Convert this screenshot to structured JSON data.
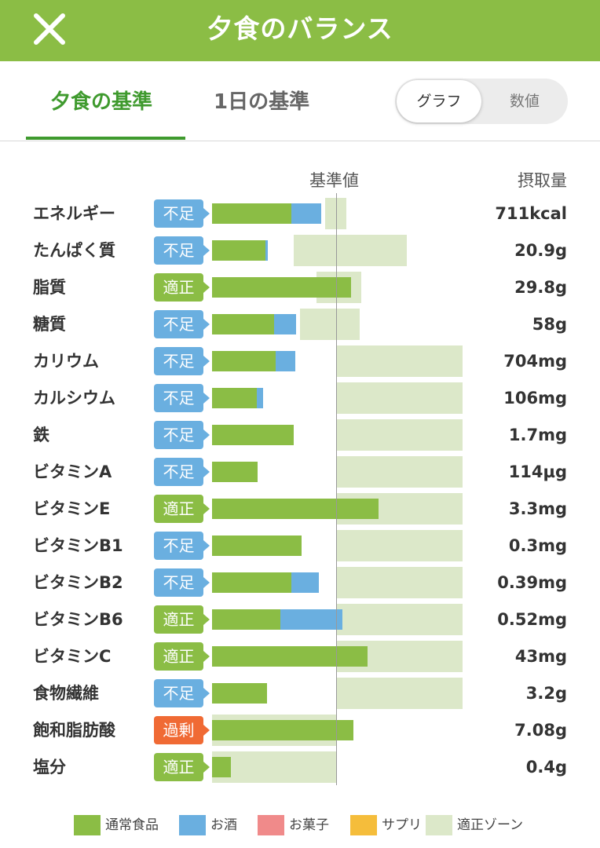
{
  "header": {
    "title": "夕食のバランス"
  },
  "tabs": [
    {
      "label": "夕食の基準"
    },
    {
      "label": "1日の基準"
    }
  ],
  "view_toggle": {
    "options": [
      "グラフ",
      "数値"
    ],
    "selected": "グラフ"
  },
  "columns": {
    "reference": "基準値",
    "intake": "摂取量"
  },
  "colors": {
    "regular_food": "#8bbd45",
    "alcohol": "#6aafe0",
    "sweets": "#f08a8a",
    "supplement": "#f5bd3b",
    "proper_zone": "#dce8c9",
    "status_short": "#6aafe0",
    "status_ok": "#8bbd45",
    "status_over": "#f06a34"
  },
  "chart_data": {
    "type": "bar",
    "reference_percent": 100,
    "value_unit": "percent_of_reference",
    "series": [
      {
        "name": "通常食品",
        "color": "#8bbd45"
      },
      {
        "name": "お酒",
        "color": "#6aafe0"
      }
    ],
    "rows": [
      {
        "name": "エネルギー",
        "status": "不足",
        "status_kind": "short",
        "intake": "711kcal",
        "regular": 64,
        "alcohol": 24,
        "zone": [
          91,
          108
        ]
      },
      {
        "name": "たんぱく質",
        "status": "不足",
        "status_kind": "short",
        "intake": "20.9g",
        "regular": 43,
        "alcohol": 2,
        "zone": [
          66,
          157
        ]
      },
      {
        "name": "脂質",
        "status": "適正",
        "status_kind": "ok",
        "intake": "29.8g",
        "regular": 112,
        "alcohol": 0,
        "zone": [
          84,
          120
        ]
      },
      {
        "name": "糖質",
        "status": "不足",
        "status_kind": "short",
        "intake": "58g",
        "regular": 50,
        "alcohol": 18,
        "zone": [
          71,
          119
        ]
      },
      {
        "name": "カリウム",
        "status": "不足",
        "status_kind": "short",
        "intake": "704mg",
        "regular": 51,
        "alcohol": 16,
        "zone": [
          100,
          202
        ]
      },
      {
        "name": "カルシウム",
        "status": "不足",
        "status_kind": "short",
        "intake": "106mg",
        "regular": 36,
        "alcohol": 5,
        "zone": [
          100,
          202
        ]
      },
      {
        "name": "鉄",
        "status": "不足",
        "status_kind": "short",
        "intake": "1.7mg",
        "regular": 66,
        "alcohol": 0,
        "zone": [
          100,
          202
        ]
      },
      {
        "name": "ビタミンA",
        "status": "不足",
        "status_kind": "short",
        "intake": "114µg",
        "regular": 37,
        "alcohol": 0,
        "zone": [
          100,
          202
        ]
      },
      {
        "name": "ビタミンE",
        "status": "適正",
        "status_kind": "ok",
        "intake": "3.3mg",
        "regular": 134,
        "alcohol": 0,
        "zone": [
          100,
          202
        ]
      },
      {
        "name": "ビタミンB1",
        "status": "不足",
        "status_kind": "short",
        "intake": "0.3mg",
        "regular": 72,
        "alcohol": 0,
        "zone": [
          100,
          202
        ]
      },
      {
        "name": "ビタミンB2",
        "status": "不足",
        "status_kind": "short",
        "intake": "0.39mg",
        "regular": 64,
        "alcohol": 22,
        "zone": [
          100,
          202
        ]
      },
      {
        "name": "ビタミンB6",
        "status": "適正",
        "status_kind": "ok",
        "intake": "0.52mg",
        "regular": 55,
        "alcohol": 50,
        "zone": [
          100,
          202
        ]
      },
      {
        "name": "ビタミンC",
        "status": "適正",
        "status_kind": "ok",
        "intake": "43mg",
        "regular": 125,
        "alcohol": 0,
        "zone": [
          100,
          202
        ]
      },
      {
        "name": "食物繊維",
        "status": "不足",
        "status_kind": "short",
        "intake": "3.2g",
        "regular": 44,
        "alcohol": 0,
        "zone": [
          100,
          202
        ]
      },
      {
        "name": "飽和脂肪酸",
        "status": "過剰",
        "status_kind": "over",
        "intake": "7.08g",
        "regular": 114,
        "alcohol": 0,
        "zone": [
          0,
          100
        ]
      },
      {
        "name": "塩分",
        "status": "適正",
        "status_kind": "ok",
        "intake": "0.4g",
        "regular": 15,
        "alcohol": 0,
        "zone": [
          0,
          100
        ]
      }
    ]
  },
  "legend": [
    {
      "label": "通常食品",
      "color": "#8bbd45"
    },
    {
      "label": "お酒",
      "color": "#6aafe0"
    },
    {
      "label": "お菓子",
      "color": "#f08a8a"
    },
    {
      "label": "サプリ",
      "color": "#f5bd3b"
    },
    {
      "label": "適正ゾーン",
      "color": "#dce8c9"
    }
  ]
}
